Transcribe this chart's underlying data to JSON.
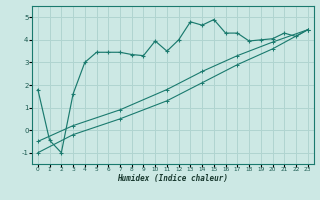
{
  "xlabel": "Humidex (Indice chaleur)",
  "bg_color": "#cce8e4",
  "grid_color": "#b0d4d0",
  "line_color": "#1a7a6e",
  "xlim": [
    -0.5,
    23.5
  ],
  "ylim": [
    -1.5,
    5.5
  ],
  "yticks": [
    -1,
    0,
    1,
    2,
    3,
    4,
    5
  ],
  "xticks": [
    0,
    1,
    2,
    3,
    4,
    5,
    6,
    7,
    8,
    9,
    10,
    11,
    12,
    13,
    14,
    15,
    16,
    17,
    18,
    19,
    20,
    21,
    22,
    23
  ],
  "line1_x": [
    0,
    1,
    2,
    3,
    4,
    5,
    6,
    7,
    8,
    9,
    10,
    11,
    12,
    13,
    14,
    15,
    16,
    17,
    18,
    19,
    20,
    21,
    22,
    23
  ],
  "line1_y": [
    1.8,
    -0.45,
    -1.0,
    1.6,
    3.0,
    3.45,
    3.45,
    3.45,
    3.35,
    3.3,
    3.95,
    3.5,
    4.0,
    4.8,
    4.65,
    4.9,
    4.3,
    4.3,
    3.95,
    4.0,
    4.05,
    4.3,
    4.15,
    4.45
  ],
  "line2_x": [
    0,
    3,
    7,
    11,
    14,
    17,
    20,
    23
  ],
  "line2_y": [
    -0.5,
    0.2,
    0.9,
    1.8,
    2.6,
    3.3,
    3.9,
    4.45
  ],
  "line3_x": [
    0,
    3,
    7,
    11,
    14,
    17,
    20,
    23
  ],
  "line3_y": [
    -1.0,
    -0.2,
    0.5,
    1.3,
    2.1,
    2.9,
    3.6,
    4.45
  ]
}
